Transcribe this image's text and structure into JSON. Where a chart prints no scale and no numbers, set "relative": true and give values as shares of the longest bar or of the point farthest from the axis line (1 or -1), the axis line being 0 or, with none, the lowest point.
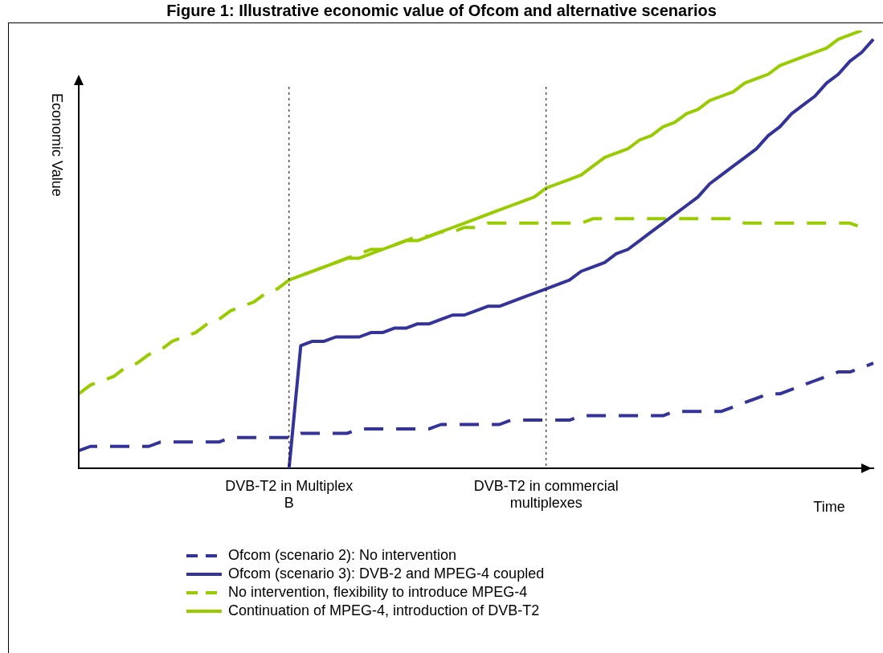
{
  "chart_data": {
    "type": "line",
    "title": "Figure 1: Illustrative economic value of Ofcom and alternative scenarios",
    "xlabel": "Time",
    "ylabel": "Economic Value",
    "relative": true,
    "grid": false,
    "legend": "bottom",
    "marker": "none",
    "categories": [
      null,
      null,
      null,
      null,
      null,
      null,
      null,
      null,
      null,
      null,
      null,
      null,
      null,
      null,
      null,
      null,
      null,
      null,
      "DVB-T2 in Multiplex B",
      null,
      null,
      null,
      null,
      null,
      null,
      null,
      null,
      null,
      null,
      null,
      null,
      null,
      null,
      null,
      null,
      null,
      null,
      null,
      null,
      null,
      "DVB-T2 in commercial multiplexes",
      null,
      null,
      null,
      null,
      null,
      null,
      null,
      null,
      null,
      null,
      null,
      null,
      null,
      null,
      null,
      null,
      null,
      null,
      null,
      null,
      null,
      null,
      null,
      null,
      null,
      null,
      null,
      null
    ],
    "series": [
      {
        "name": "Ofcom (scenario 2): No intervention",
        "color": "#333399",
        "line_style": "dashed",
        "values": [
          0.04,
          0.05,
          0.05,
          0.05,
          0.05,
          0.05,
          0.05,
          0.06,
          0.06,
          0.06,
          0.06,
          0.06,
          0.06,
          0.07,
          0.07,
          0.07,
          0.07,
          0.07,
          0.07,
          0.08,
          0.08,
          0.08,
          0.08,
          0.08,
          0.09,
          0.09,
          0.09,
          0.09,
          0.09,
          0.09,
          0.09,
          0.1,
          0.1,
          0.1,
          0.1,
          0.1,
          0.1,
          0.11,
          0.11,
          0.11,
          0.11,
          0.11,
          0.11,
          0.12,
          0.12,
          0.12,
          0.12,
          0.12,
          0.12,
          0.12,
          0.12,
          0.13,
          0.13,
          0.13,
          0.13,
          0.13,
          0.14,
          0.15,
          0.16,
          0.17,
          0.17,
          0.18,
          0.19,
          0.2,
          0.21,
          0.22,
          0.22,
          0.23,
          0.24
        ]
      },
      {
        "name": "Ofcom (scenario 3): DVB-2 and MPEG-4 coupled",
        "color": "#333399",
        "line_style": "solid",
        "values": [
          null,
          null,
          null,
          null,
          null,
          null,
          null,
          null,
          null,
          null,
          null,
          null,
          null,
          null,
          null,
          null,
          null,
          null,
          0,
          0.28,
          0.29,
          0.29,
          0.3,
          0.3,
          0.3,
          0.31,
          0.31,
          0.32,
          0.32,
          0.33,
          0.33,
          0.34,
          0.35,
          0.35,
          0.36,
          0.37,
          0.37,
          0.38,
          0.39,
          0.4,
          0.41,
          0.42,
          0.43,
          0.45,
          0.46,
          0.47,
          0.49,
          0.5,
          0.52,
          0.54,
          0.56,
          0.58,
          0.6,
          0.62,
          0.65,
          0.67,
          0.69,
          0.71,
          0.73,
          0.76,
          0.78,
          0.81,
          0.83,
          0.85,
          0.88,
          0.9,
          0.93,
          0.95,
          0.98
        ]
      },
      {
        "name": "No intervention, flexibility to introduce MPEG-4",
        "color": "#99cc00",
        "line_style": "dashed",
        "values": [
          0.17,
          0.19,
          0.2,
          0.21,
          0.23,
          0.24,
          0.26,
          0.27,
          0.29,
          0.3,
          0.31,
          0.33,
          0.34,
          0.36,
          0.37,
          0.38,
          0.4,
          0.41,
          0.43,
          0.44,
          0.45,
          0.46,
          0.47,
          0.48,
          0.49,
          0.5,
          0.5,
          0.51,
          0.52,
          0.53,
          0.53,
          0.54,
          0.54,
          0.55,
          0.55,
          0.56,
          0.56,
          0.56,
          0.56,
          0.56,
          0.56,
          0.56,
          0.56,
          0.56,
          0.57,
          0.57,
          0.57,
          0.57,
          0.57,
          0.57,
          0.57,
          0.57,
          0.57,
          0.57,
          0.57,
          0.57,
          0.57,
          0.56,
          0.56,
          0.56,
          0.56,
          0.56,
          0.56,
          0.56,
          0.56,
          0.56,
          0.56,
          0.55,
          null
        ]
      },
      {
        "name": "Continuation of MPEG-4, introduction of DVB-T2",
        "color": "#99cc00",
        "line_style": "solid",
        "values": [
          null,
          null,
          null,
          null,
          null,
          null,
          null,
          null,
          null,
          null,
          null,
          null,
          null,
          null,
          null,
          null,
          null,
          null,
          0.43,
          0.44,
          0.45,
          0.46,
          0.47,
          0.48,
          0.48,
          0.49,
          0.5,
          0.51,
          0.52,
          0.52,
          0.53,
          0.54,
          0.55,
          0.56,
          0.57,
          0.58,
          0.59,
          0.6,
          0.61,
          0.62,
          0.64,
          0.65,
          0.66,
          0.67,
          0.69,
          0.71,
          0.72,
          0.73,
          0.75,
          0.76,
          0.78,
          0.79,
          0.81,
          0.82,
          0.84,
          0.85,
          0.86,
          0.88,
          0.89,
          0.9,
          0.92,
          0.93,
          0.94,
          0.95,
          0.96,
          0.98,
          0.99,
          1,
          null
        ]
      }
    ],
    "ref_lines": [
      {
        "axis": "x",
        "value": "DVB-T2 in Multiplex B",
        "color": "#000000",
        "line_style": "dotted"
      },
      {
        "axis": "x",
        "value": "DVB-T2 in commercial multiplexes",
        "color": "#000000",
        "line_style": "dotted"
      }
    ]
  }
}
